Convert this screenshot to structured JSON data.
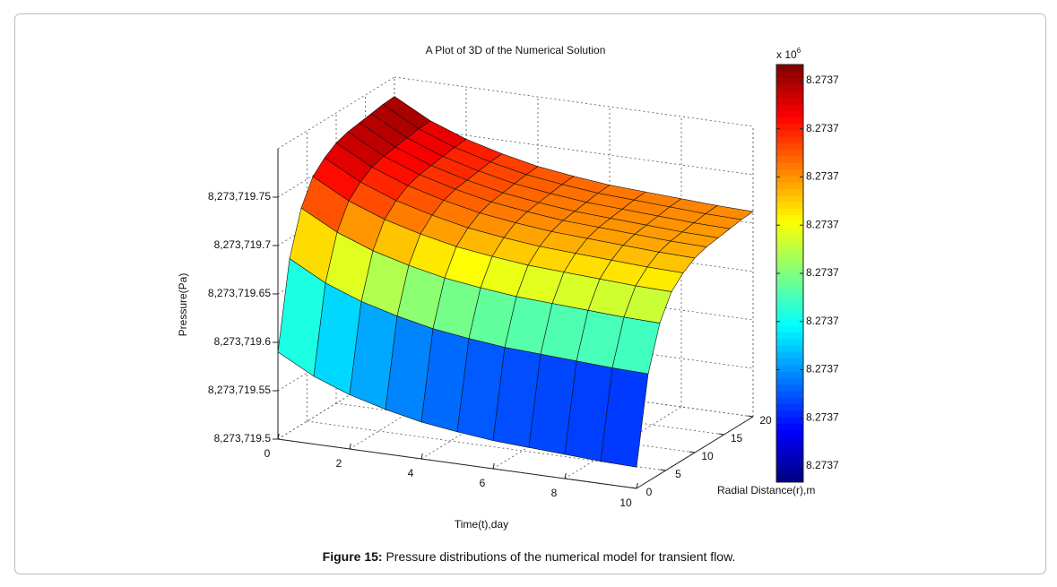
{
  "chart_data": {
    "type": "surface",
    "title": "A Plot of 3D of the Numerical Solution",
    "xlabel": "Time(t),day",
    "ylabel": "Radial Distance(r),m",
    "zlabel": "Pressure(Pa)",
    "caption": {
      "label": "Figure 15:",
      "text": "Pressure distributions of the numerical model for transient flow."
    },
    "x": [
      0,
      1,
      2,
      3,
      4,
      5,
      6,
      7,
      8,
      9,
      10
    ],
    "y": [
      0,
      2,
      4,
      6,
      8,
      10,
      12,
      14,
      16,
      18,
      20
    ],
    "z": [
      [
        8273719.59,
        8273719.57,
        8273719.556,
        8273719.546,
        8273719.538,
        8273719.533,
        8273719.529,
        8273719.527,
        8273719.525,
        8273719.523,
        8273719.522
      ],
      [
        8273719.679,
        8273719.659,
        8273719.645,
        8273719.635,
        8273719.627,
        8273719.622,
        8273719.618,
        8273719.616,
        8273719.614,
        8273719.612,
        8273719.611
      ],
      [
        8273719.724,
        8273719.704,
        8273719.69,
        8273719.68,
        8273719.672,
        8273719.667,
        8273719.663,
        8273719.661,
        8273719.659,
        8273719.657,
        8273719.656
      ],
      [
        8273719.749,
        8273719.729,
        8273719.715,
        8273719.705,
        8273719.697,
        8273719.692,
        8273719.688,
        8273719.686,
        8273719.684,
        8273719.682,
        8273719.681
      ],
      [
        8273719.761,
        8273719.741,
        8273719.727,
        8273719.717,
        8273719.709,
        8273719.704,
        8273719.7,
        8273719.698,
        8273719.696,
        8273719.694,
        8273719.693
      ],
      [
        8273719.769,
        8273719.749,
        8273719.735,
        8273719.725,
        8273719.717,
        8273719.712,
        8273719.708,
        8273719.706,
        8273719.704,
        8273719.702,
        8273719.701
      ],
      [
        8273719.773,
        8273719.753,
        8273719.739,
        8273719.729,
        8273719.721,
        8273719.716,
        8273719.712,
        8273719.71,
        8273719.708,
        8273719.706,
        8273719.705
      ],
      [
        8273719.775,
        8273719.755,
        8273719.741,
        8273719.731,
        8273719.723,
        8273719.718,
        8273719.714,
        8273719.712,
        8273719.71,
        8273719.708,
        8273719.707
      ],
      [
        8273719.777,
        8273719.757,
        8273719.743,
        8273719.733,
        8273719.725,
        8273719.72,
        8273719.716,
        8273719.714,
        8273719.712,
        8273719.71,
        8273719.709
      ],
      [
        8273719.779,
        8273719.759,
        8273719.745,
        8273719.735,
        8273719.727,
        8273719.722,
        8273719.718,
        8273719.716,
        8273719.714,
        8273719.712,
        8273719.711
      ],
      [
        8273719.78,
        8273719.76,
        8273719.746,
        8273719.736,
        8273719.728,
        8273719.723,
        8273719.719,
        8273719.717,
        8273719.715,
        8273719.713,
        8273719.712
      ]
    ],
    "xlim": [
      0,
      10
    ],
    "xticks": [
      0,
      2,
      4,
      6,
      8,
      10
    ],
    "ylim": [
      0,
      20
    ],
    "yticks": [
      0,
      5,
      10,
      15,
      20
    ],
    "zlim": [
      8273719.5,
      8273719.8
    ],
    "zticks": [
      {
        "value": 8273719.5,
        "label": "8,273,719.5"
      },
      {
        "value": 8273719.55,
        "label": "8,273,719.55"
      },
      {
        "value": 8273719.6,
        "label": "8,273,719.6"
      },
      {
        "value": 8273719.65,
        "label": "8,273,719.65"
      },
      {
        "value": 8273719.7,
        "label": "8,273,719.7"
      },
      {
        "value": 8273719.75,
        "label": "8,273,719.75"
      }
    ],
    "colormap": "jet",
    "clim": [
      8273719.52,
      8273719.78
    ],
    "colorbar_exponent": {
      "base": "x 10",
      "power": "6"
    },
    "colorbar_ticks": [
      {
        "value": 8273719.53,
        "label": "8.2737"
      },
      {
        "value": 8273719.56,
        "label": "8.2737"
      },
      {
        "value": 8273719.59,
        "label": "8.2737"
      },
      {
        "value": 8273719.62,
        "label": "8.2737"
      },
      {
        "value": 8273719.65,
        "label": "8.2737"
      },
      {
        "value": 8273719.68,
        "label": "8.2737"
      },
      {
        "value": 8273719.71,
        "label": "8.2737"
      },
      {
        "value": 8273719.74,
        "label": "8.2737"
      },
      {
        "value": 8273719.77,
        "label": "8.2737"
      }
    ],
    "grid": true
  }
}
